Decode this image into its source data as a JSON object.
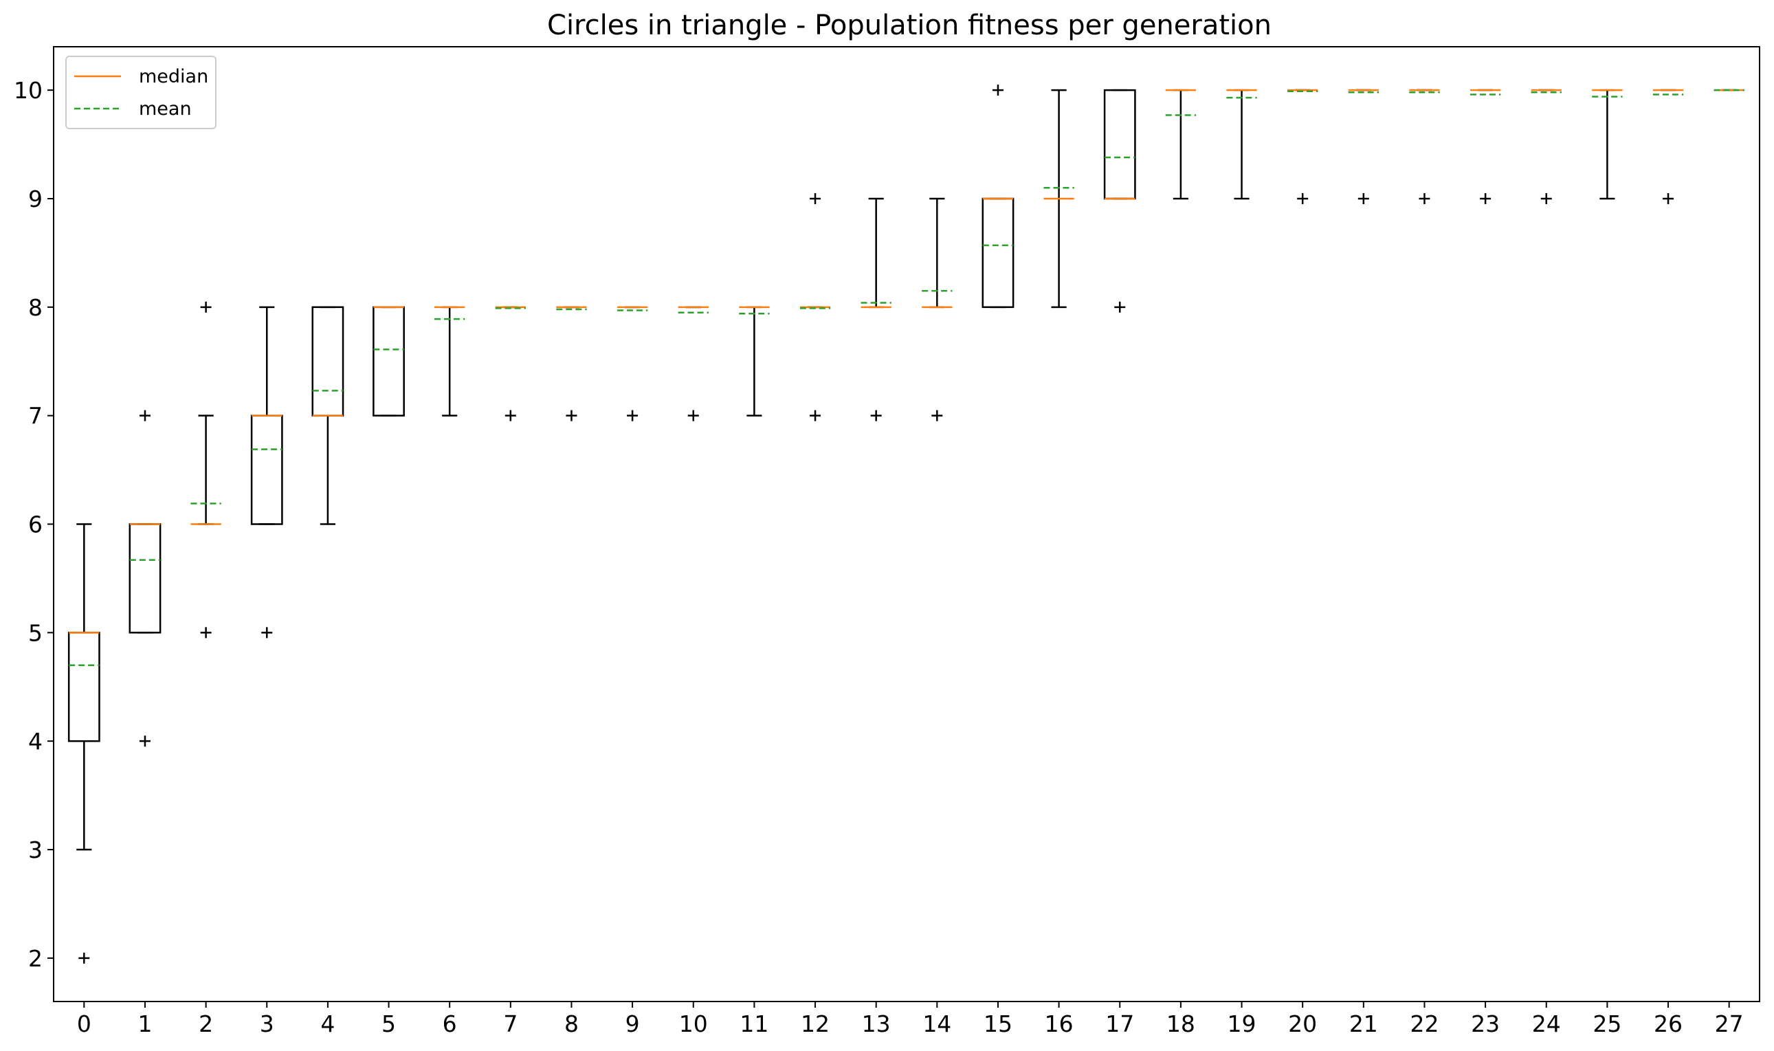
{
  "chart_data": {
    "type": "box",
    "title": "Circles in triangle - Population fitness per generation",
    "xlabel": "",
    "ylabel": "",
    "ylim": [
      1.6,
      10.4
    ],
    "xlim": [
      -0.5,
      27.5
    ],
    "yticks": [
      2,
      3,
      4,
      5,
      6,
      7,
      8,
      9,
      10
    ],
    "grid": false,
    "legend": {
      "position": "top-left",
      "entries": [
        {
          "label": "median",
          "color": "#ff7f0e",
          "style": "solid"
        },
        {
          "label": "mean",
          "color": "#2ca02c",
          "style": "dashed"
        }
      ]
    },
    "colors": {
      "box": "#000000",
      "median": "#ff7f0e",
      "mean": "#2ca02c",
      "flier": "#000000"
    },
    "series": [
      {
        "x": 0,
        "whislo": 3,
        "q1": 4,
        "med": 5,
        "q3": 5,
        "whishi": 6,
        "mean": 4.7,
        "fliers": [
          2
        ]
      },
      {
        "x": 1,
        "whislo": 5,
        "q1": 5,
        "med": 6,
        "q3": 6,
        "whishi": 6,
        "mean": 5.67,
        "fliers": [
          4,
          7
        ]
      },
      {
        "x": 2,
        "whislo": 6,
        "q1": 6,
        "med": 6,
        "q3": 6,
        "whishi": 7,
        "mean": 6.19,
        "fliers": [
          5,
          8
        ]
      },
      {
        "x": 3,
        "whislo": 6,
        "q1": 6,
        "med": 7,
        "q3": 7,
        "whishi": 8,
        "mean": 6.69,
        "fliers": [
          5
        ]
      },
      {
        "x": 4,
        "whislo": 6,
        "q1": 7,
        "med": 7,
        "q3": 8,
        "whishi": 8,
        "mean": 7.23,
        "fliers": []
      },
      {
        "x": 5,
        "whislo": 7,
        "q1": 7,
        "med": 8,
        "q3": 8,
        "whishi": 8,
        "mean": 7.61,
        "fliers": []
      },
      {
        "x": 6,
        "whislo": 7,
        "q1": 8,
        "med": 8,
        "q3": 8,
        "whishi": 8,
        "mean": 7.89,
        "fliers": []
      },
      {
        "x": 7,
        "whislo": 8,
        "q1": 8,
        "med": 8,
        "q3": 8,
        "whishi": 8,
        "mean": 7.99,
        "fliers": [
          7
        ]
      },
      {
        "x": 8,
        "whislo": 8,
        "q1": 8,
        "med": 8,
        "q3": 8,
        "whishi": 8,
        "mean": 7.98,
        "fliers": [
          7
        ]
      },
      {
        "x": 9,
        "whislo": 8,
        "q1": 8,
        "med": 8,
        "q3": 8,
        "whishi": 8,
        "mean": 7.97,
        "fliers": [
          7
        ]
      },
      {
        "x": 10,
        "whislo": 8,
        "q1": 8,
        "med": 8,
        "q3": 8,
        "whishi": 8,
        "mean": 7.95,
        "fliers": [
          7
        ]
      },
      {
        "x": 11,
        "whislo": 7,
        "q1": 8,
        "med": 8,
        "q3": 8,
        "whishi": 8,
        "mean": 7.94,
        "fliers": []
      },
      {
        "x": 12,
        "whislo": 8,
        "q1": 8,
        "med": 8,
        "q3": 8,
        "whishi": 8,
        "mean": 7.99,
        "fliers": [
          7,
          9
        ]
      },
      {
        "x": 13,
        "whislo": 8,
        "q1": 8,
        "med": 8,
        "q3": 8,
        "whishi": 9,
        "mean": 8.04,
        "fliers": [
          7
        ]
      },
      {
        "x": 14,
        "whislo": 8,
        "q1": 8,
        "med": 8,
        "q3": 8,
        "whishi": 9,
        "mean": 8.15,
        "fliers": [
          7
        ]
      },
      {
        "x": 15,
        "whislo": 8,
        "q1": 8,
        "med": 9,
        "q3": 9,
        "whishi": 9,
        "mean": 8.57,
        "fliers": [
          10
        ]
      },
      {
        "x": 16,
        "whislo": 8,
        "q1": 9,
        "med": 9,
        "q3": 9,
        "whishi": 10,
        "mean": 9.1,
        "fliers": []
      },
      {
        "x": 17,
        "whislo": 9,
        "q1": 9,
        "med": 9,
        "q3": 10,
        "whishi": 10,
        "mean": 9.38,
        "fliers": [
          8
        ]
      },
      {
        "x": 18,
        "whislo": 9,
        "q1": 10,
        "med": 10,
        "q3": 10,
        "whishi": 10,
        "mean": 9.77,
        "fliers": []
      },
      {
        "x": 19,
        "whislo": 9,
        "q1": 10,
        "med": 10,
        "q3": 10,
        "whishi": 10,
        "mean": 9.93,
        "fliers": []
      },
      {
        "x": 20,
        "whislo": 10,
        "q1": 10,
        "med": 10,
        "q3": 10,
        "whishi": 10,
        "mean": 9.99,
        "fliers": [
          9
        ]
      },
      {
        "x": 21,
        "whislo": 10,
        "q1": 10,
        "med": 10,
        "q3": 10,
        "whishi": 10,
        "mean": 9.98,
        "fliers": [
          9
        ]
      },
      {
        "x": 22,
        "whislo": 10,
        "q1": 10,
        "med": 10,
        "q3": 10,
        "whishi": 10,
        "mean": 9.98,
        "fliers": [
          9
        ]
      },
      {
        "x": 23,
        "whislo": 10,
        "q1": 10,
        "med": 10,
        "q3": 10,
        "whishi": 10,
        "mean": 9.96,
        "fliers": [
          9
        ]
      },
      {
        "x": 24,
        "whislo": 10,
        "q1": 10,
        "med": 10,
        "q3": 10,
        "whishi": 10,
        "mean": 9.98,
        "fliers": [
          9
        ]
      },
      {
        "x": 25,
        "whislo": 9,
        "q1": 10,
        "med": 10,
        "q3": 10,
        "whishi": 10,
        "mean": 9.94,
        "fliers": []
      },
      {
        "x": 26,
        "whislo": 10,
        "q1": 10,
        "med": 10,
        "q3": 10,
        "whishi": 10,
        "mean": 9.96,
        "fliers": [
          9
        ]
      },
      {
        "x": 27,
        "whislo": 10,
        "q1": 10,
        "med": 10,
        "q3": 10,
        "whishi": 10,
        "mean": 10.0,
        "fliers": []
      }
    ]
  }
}
